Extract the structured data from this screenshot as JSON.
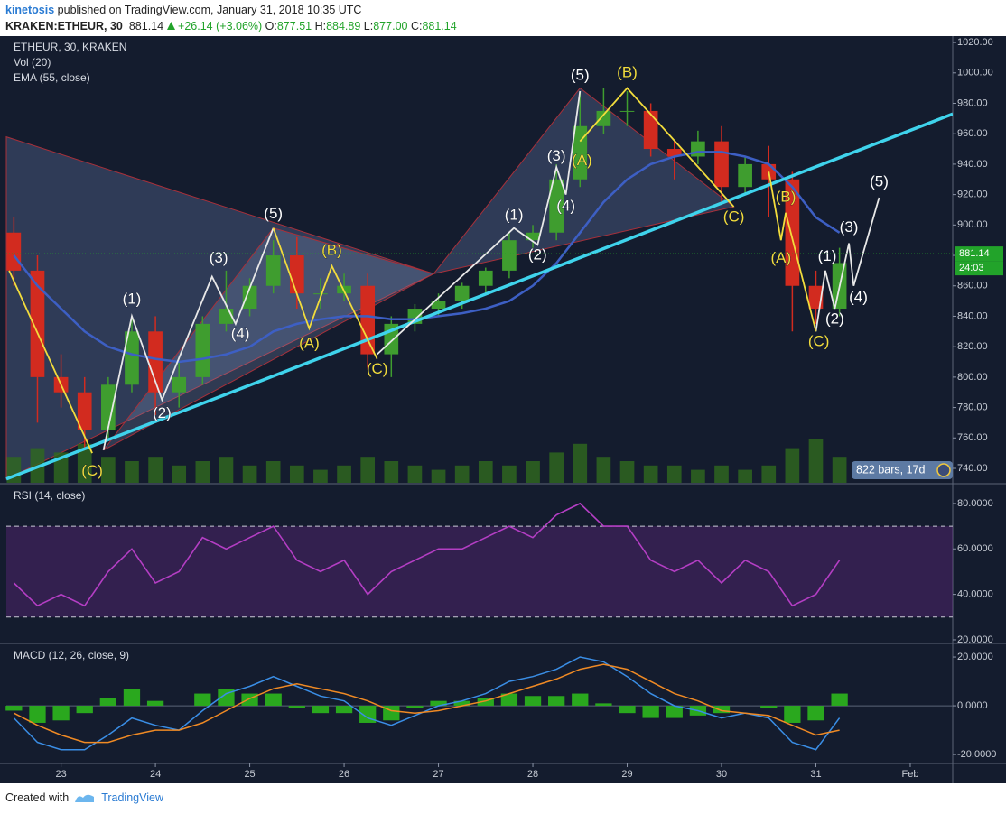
{
  "header": {
    "author": "kinetosis",
    "published": "published on TradingView.com, January 31, 2018 10:35 UTC",
    "symbol": "KRAKEN:ETHEUR, 30",
    "last": "881.14",
    "change": "+26.14 (+3.06%)",
    "open_label": "O:",
    "open": "877.51",
    "high_label": "H:",
    "high": "884.89",
    "low_label": "L:",
    "low": "877.00",
    "close_label": "C:",
    "close": "881.14"
  },
  "footer": {
    "text": "Created with",
    "brand": "TradingView"
  },
  "chart_data": [
    {
      "type": "candlestick",
      "title": "ETHEUR, 30, KRAKEN",
      "x": [
        22.5,
        22.75,
        23,
        23.25,
        23.5,
        23.75,
        24,
        24.25,
        24.5,
        24.75,
        25,
        25.25,
        25.5,
        25.75,
        26,
        26.25,
        26.5,
        26.75,
        27,
        27.25,
        27.5,
        27.75,
        28,
        28.25,
        28.5,
        28.75,
        29,
        29.25,
        29.5,
        29.75,
        30,
        30.25,
        30.5,
        30.75,
        31,
        31.25
      ],
      "open": [
        895,
        870,
        800,
        790,
        765,
        795,
        830,
        790,
        800,
        835,
        845,
        860,
        880,
        855,
        855,
        860,
        815,
        835,
        845,
        850,
        860,
        870,
        890,
        895,
        930,
        965,
        975,
        975,
        950,
        945,
        955,
        925,
        940,
        930,
        860,
        845
      ],
      "high": [
        905,
        880,
        815,
        800,
        800,
        840,
        840,
        810,
        840,
        870,
        865,
        890,
        892,
        865,
        868,
        868,
        840,
        848,
        855,
        862,
        872,
        895,
        900,
        940,
        988,
        990,
        988,
        980,
        955,
        962,
        965,
        945,
        952,
        935,
        870,
        885
      ],
      "low": [
        860,
        770,
        780,
        752,
        760,
        790,
        775,
        780,
        795,
        830,
        840,
        855,
        845,
        845,
        850,
        805,
        800,
        830,
        840,
        845,
        855,
        865,
        885,
        890,
        925,
        960,
        965,
        945,
        930,
        940,
        915,
        920,
        905,
        830,
        835,
        840
      ],
      "close": [
        870,
        800,
        790,
        765,
        795,
        830,
        790,
        800,
        835,
        845,
        860,
        880,
        855,
        855,
        860,
        815,
        835,
        845,
        850,
        860,
        870,
        890,
        895,
        930,
        965,
        975,
        975,
        950,
        945,
        955,
        925,
        940,
        930,
        860,
        845,
        875
      ],
      "up_color": "#3f9d2f",
      "down_color": "#d22b1f",
      "volume": {
        "name": "Vol (20)",
        "color": "#2f6a1e",
        "values": [
          30,
          40,
          35,
          45,
          30,
          25,
          30,
          20,
          25,
          30,
          20,
          25,
          20,
          15,
          20,
          30,
          25,
          20,
          15,
          20,
          25,
          20,
          25,
          35,
          45,
          30,
          25,
          20,
          20,
          15,
          20,
          15,
          20,
          40,
          50,
          30
        ]
      },
      "series": [
        {
          "name": "EMA (55, close)",
          "color": "#3d5fc4",
          "values": [
            880,
            860,
            845,
            830,
            820,
            815,
            812,
            810,
            812,
            815,
            820,
            830,
            835,
            838,
            840,
            840,
            838,
            838,
            840,
            842,
            845,
            850,
            860,
            875,
            895,
            915,
            930,
            940,
            945,
            948,
            948,
            945,
            940,
            925,
            905,
            895
          ]
        }
      ],
      "xlim": [
        22.42,
        32.45
      ],
      "ylim": [
        730.5,
        1024.2
      ],
      "yticks": [
        {
          "value": 740,
          "label": "740.00"
        },
        {
          "value": 760,
          "label": "760.00"
        },
        {
          "value": 780,
          "label": "780.00"
        },
        {
          "value": 800,
          "label": "800.00"
        },
        {
          "value": 820,
          "label": "820.00"
        },
        {
          "value": 840,
          "label": "840.00"
        },
        {
          "value": 860,
          "label": "860.00"
        },
        {
          "value": 880,
          "label": "880.00"
        },
        {
          "value": 900,
          "label": "900.00"
        },
        {
          "value": 920,
          "label": "920.00"
        },
        {
          "value": 940,
          "label": "940.00"
        },
        {
          "value": 960,
          "label": "960.00"
        },
        {
          "value": 980,
          "label": "980.00"
        },
        {
          "value": 1000,
          "label": "1000.00"
        },
        {
          "value": 1020,
          "label": "1020.00"
        }
      ],
      "last_price": 881.14,
      "last_color": "#22a32a",
      "countdown": "24:03",
      "bars_badge": "822 bars, 17d",
      "shapes": [
        {
          "x": [
            22.42,
            26.95,
            22.42
          ],
          "y": [
            958,
            868,
            733
          ],
          "fill": "rgba(120,140,195,0.28)",
          "stroke": "#a8303a"
        },
        {
          "x": [
            23.45,
            25.25,
            26.95
          ],
          "y": [
            752,
            898,
            868
          ],
          "fill": "rgba(150,170,215,0.22)",
          "stroke": "#a8303a"
        },
        {
          "x": [
            26.95,
            28.5,
            30.13
          ],
          "y": [
            868,
            990,
            912
          ],
          "fill": "rgba(120,140,195,0.28)",
          "stroke": "#a8303a"
        }
      ],
      "trendline": {
        "x": [
          22.42,
          32.45
        ],
        "y": [
          733,
          973
        ],
        "color": "#3fd3ec"
      },
      "waves": [
        {
          "color": "#e8e8e8",
          "x": [
            23.45,
            23.75,
            24.07,
            24.6,
            24.85,
            25.25
          ],
          "y": [
            752,
            840,
            785,
            866,
            835,
            898
          ]
        },
        {
          "color": "#e8e8e8",
          "x": [
            26.35,
            27.8,
            28.05,
            28.25,
            28.35,
            28.5
          ],
          "y": [
            815,
            898,
            887,
            938,
            920,
            988
          ]
        },
        {
          "color": "#e8e8e8",
          "x": [
            31,
            31.1,
            31.2,
            31.35,
            31.4,
            31.67
          ],
          "y": [
            830,
            870,
            845,
            888,
            860,
            918
          ]
        },
        {
          "color": "#f2dc3c",
          "x": [
            22.45,
            23.33
          ],
          "y": [
            870,
            750
          ]
        },
        {
          "color": "#f2dc3c",
          "x": [
            25.25,
            25.63,
            25.87,
            26.35
          ],
          "y": [
            898,
            832,
            873,
            812
          ]
        },
        {
          "color": "#f2dc3c",
          "x": [
            28.5,
            29,
            30.13
          ],
          "y": [
            955,
            990,
            912
          ]
        },
        {
          "color": "#f2dc3c",
          "x": [
            30.5,
            30.63,
            30.68,
            31
          ],
          "y": [
            935,
            890,
            908,
            830
          ]
        }
      ],
      "annotations": [
        {
          "text": "(1)",
          "x": 23.75,
          "y": 851,
          "color": "#ffffff"
        },
        {
          "text": "(2)",
          "x": 24.07,
          "y": 776,
          "color": "#ffffff"
        },
        {
          "text": "(3)",
          "x": 24.67,
          "y": 878,
          "color": "#ffffff"
        },
        {
          "text": "(4)",
          "x": 24.9,
          "y": 828,
          "color": "#ffffff"
        },
        {
          "text": "(5)",
          "x": 25.25,
          "y": 907,
          "color": "#ffffff"
        },
        {
          "text": "(1)",
          "x": 27.8,
          "y": 906,
          "color": "#ffffff"
        },
        {
          "text": "(2)",
          "x": 28.05,
          "y": 880,
          "color": "#ffffff"
        },
        {
          "text": "(3)",
          "x": 28.25,
          "y": 945,
          "color": "#ffffff"
        },
        {
          "text": "(4)",
          "x": 28.35,
          "y": 912,
          "color": "#ffffff"
        },
        {
          "text": "(5)",
          "x": 28.5,
          "y": 998,
          "color": "#ffffff"
        },
        {
          "text": "(1)",
          "x": 31.12,
          "y": 879,
          "color": "#ffffff"
        },
        {
          "text": "(2)",
          "x": 31.2,
          "y": 838,
          "color": "#ffffff"
        },
        {
          "text": "(3)",
          "x": 31.35,
          "y": 898,
          "color": "#ffffff"
        },
        {
          "text": "(4)",
          "x": 31.45,
          "y": 852,
          "color": "#ffffff"
        },
        {
          "text": "(5)",
          "x": 31.67,
          "y": 928,
          "color": "#ffffff"
        },
        {
          "text": "(C)",
          "x": 23.33,
          "y": 738,
          "color": "#f2dc3c"
        },
        {
          "text": "(A)",
          "x": 25.63,
          "y": 822,
          "color": "#f2dc3c"
        },
        {
          "text": "(B)",
          "x": 25.87,
          "y": 883,
          "color": "#f2dc3c"
        },
        {
          "text": "(C)",
          "x": 26.35,
          "y": 805,
          "color": "#f2dc3c"
        },
        {
          "text": "(A)",
          "x": 28.52,
          "y": 942,
          "color": "#f2dc3c"
        },
        {
          "text": "(B)",
          "x": 29,
          "y": 1000,
          "color": "#f2dc3c"
        },
        {
          "text": "(C)",
          "x": 30.13,
          "y": 905,
          "color": "#f2dc3c"
        },
        {
          "text": "(B)",
          "x": 30.68,
          "y": 918,
          "color": "#f2dc3c"
        },
        {
          "text": "(A)",
          "x": 30.63,
          "y": 878,
          "color": "#f2dc3c"
        },
        {
          "text": "(C)",
          "x": 31.03,
          "y": 823,
          "color": "#f2dc3c"
        }
      ]
    },
    {
      "type": "line",
      "title": "RSI (14, close)",
      "x": [
        22.5,
        22.75,
        23,
        23.25,
        23.5,
        23.75,
        24,
        24.25,
        24.5,
        24.75,
        25,
        25.25,
        25.5,
        25.75,
        26,
        26.25,
        26.5,
        26.75,
        27,
        27.25,
        27.5,
        27.75,
        28,
        28.25,
        28.5,
        28.75,
        29,
        29.25,
        29.5,
        29.75,
        30,
        30.25,
        30.5,
        30.75,
        31,
        31.25
      ],
      "series": [
        {
          "name": "RSI",
          "color": "#b43ec4",
          "values": [
            45,
            35,
            40,
            35,
            50,
            60,
            45,
            50,
            65,
            60,
            65,
            70,
            55,
            50,
            55,
            40,
            50,
            55,
            60,
            60,
            65,
            70,
            65,
            75,
            80,
            70,
            70,
            55,
            50,
            55,
            45,
            55,
            50,
            35,
            40,
            55
          ]
        }
      ],
      "bands": [
        30,
        70
      ],
      "band_color": "rgba(110,40,140,0.35)",
      "xlim": [
        22.42,
        32.45
      ],
      "ylim": [
        18.8,
        88.3
      ],
      "yticks": [
        {
          "value": 20,
          "label": "20.0000"
        },
        {
          "value": 40,
          "label": "40.0000"
        },
        {
          "value": 60,
          "label": "60.0000"
        },
        {
          "value": 80,
          "label": "80.0000"
        }
      ]
    },
    {
      "type": "macd",
      "title": "MACD (12, 26, close, 9)",
      "x": [
        22.5,
        22.75,
        23,
        23.25,
        23.5,
        23.75,
        24,
        24.25,
        24.5,
        24.75,
        25,
        25.25,
        25.5,
        25.75,
        26,
        26.25,
        26.5,
        26.75,
        27,
        27.25,
        27.5,
        27.75,
        28,
        28.25,
        28.5,
        28.75,
        29,
        29.25,
        29.5,
        29.75,
        30,
        30.25,
        30.5,
        30.75,
        31,
        31.25
      ],
      "histogram": {
        "color": "#2aa81e",
        "values": [
          -2,
          -7,
          -6,
          -3,
          3,
          7,
          2,
          0,
          5,
          7,
          5,
          5,
          -1,
          -3,
          -3,
          -7,
          -6,
          -1,
          2,
          2,
          3,
          5,
          4,
          4,
          5,
          1,
          -3,
          -5,
          -5,
          -4,
          -3,
          0,
          -1,
          -7,
          -6,
          5
        ]
      },
      "series": [
        {
          "name": "MACD",
          "color": "#3a8ee6",
          "values": [
            -5,
            -15,
            -18,
            -18,
            -12,
            -5,
            -8,
            -10,
            -2,
            5,
            8,
            12,
            8,
            4,
            2,
            -5,
            -8,
            -4,
            0,
            2,
            5,
            10,
            12,
            15,
            20,
            18,
            12,
            5,
            0,
            -2,
            -5,
            -3,
            -5,
            -15,
            -18,
            -5
          ]
        },
        {
          "name": "Signal",
          "color": "#f08a24",
          "values": [
            -3,
            -8,
            -12,
            -15,
            -15,
            -12,
            -10,
            -10,
            -7,
            -2,
            3,
            7,
            9,
            7,
            5,
            2,
            -2,
            -3,
            -2,
            0,
            2,
            5,
            8,
            11,
            15,
            17,
            15,
            10,
            5,
            2,
            -2,
            -3,
            -4,
            -8,
            -12,
            -10
          ]
        }
      ],
      "xlim": [
        22.42,
        32.45
      ],
      "ylim": [
        -23.3,
        25.2
      ],
      "yticks": [
        {
          "value": -20,
          "label": "-20.0000"
        },
        {
          "value": 0,
          "label": "0.0000"
        },
        {
          "value": 20,
          "label": "20.0000"
        }
      ],
      "xticks": [
        23,
        24,
        25,
        26,
        27,
        28,
        29,
        30,
        31,
        {
          "value": 32,
          "label": "Feb"
        }
      ]
    }
  ]
}
